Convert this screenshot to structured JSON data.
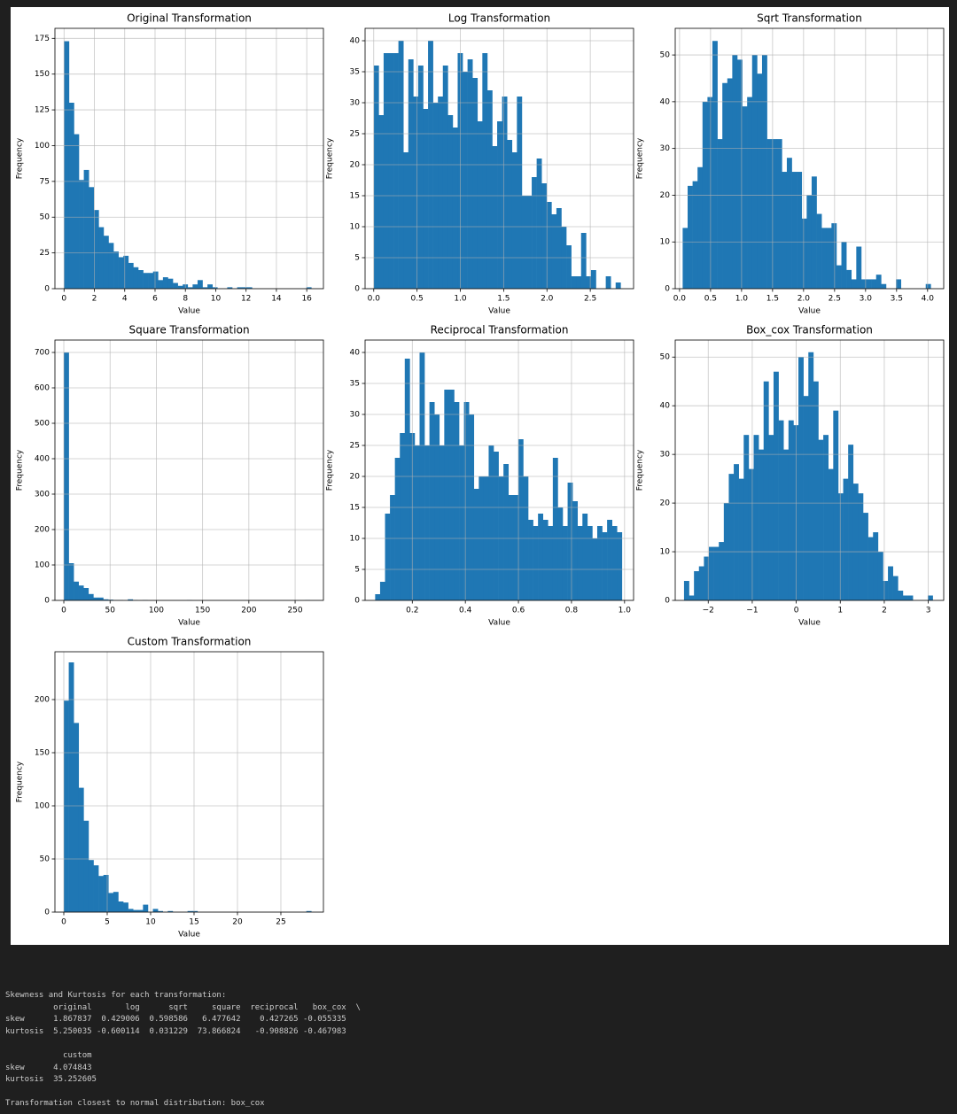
{
  "chart_data": [
    {
      "type": "histogram",
      "title": "Original Transformation",
      "xlabel": "Value",
      "ylabel": "Frequency",
      "color": "#1f77b4",
      "grid": true,
      "bins": [
        0,
        0.326,
        0.652,
        0.978,
        1.304,
        1.63,
        1.956,
        2.282,
        2.608,
        2.934,
        3.26,
        3.586,
        3.912,
        4.238,
        4.564,
        4.89,
        5.216,
        5.542,
        5.868,
        6.194,
        6.52,
        6.846,
        7.172,
        7.498,
        7.824,
        8.15,
        8.476,
        8.802,
        9.128,
        9.454,
        9.78,
        10.106,
        10.432,
        10.758,
        11.084,
        11.41,
        11.736,
        12.062,
        12.388,
        12.714,
        13.04,
        13.366,
        13.692,
        14.018,
        14.344,
        14.67,
        14.996,
        15.322,
        15.648,
        15.974,
        16.3
      ],
      "values": [
        173,
        130,
        108,
        76,
        83,
        71,
        55,
        43,
        37,
        32,
        26,
        22,
        23,
        18,
        15,
        13,
        11,
        11,
        12,
        6,
        8,
        7,
        4,
        2,
        3,
        1,
        3,
        6,
        1,
        3,
        1,
        0,
        0,
        1,
        0,
        1,
        1,
        1,
        0,
        0,
        0,
        0,
        0,
        0,
        0,
        0,
        0,
        0,
        0,
        1
      ],
      "xlim": [
        -0.6,
        17.1
      ],
      "xticks": [
        0,
        2,
        4,
        6,
        8,
        10,
        12,
        14,
        16
      ],
      "ylim": [
        0,
        182
      ],
      "yticks": [
        0,
        25,
        50,
        75,
        100,
        125,
        150,
        175
      ]
    },
    {
      "type": "histogram",
      "title": "Log Transformation",
      "xlabel": "Value",
      "ylabel": "Frequency",
      "color": "#1f77b4",
      "grid": true,
      "bins": [
        0,
        0.057,
        0.114,
        0.171,
        0.228,
        0.285,
        0.342,
        0.399,
        0.456,
        0.513,
        0.57,
        0.627,
        0.684,
        0.741,
        0.798,
        0.855,
        0.912,
        0.969,
        1.026,
        1.083,
        1.14,
        1.197,
        1.254,
        1.311,
        1.368,
        1.425,
        1.482,
        1.539,
        1.596,
        1.653,
        1.71,
        1.767,
        1.824,
        1.881,
        1.938,
        1.995,
        2.052,
        2.109,
        2.166,
        2.223,
        2.28,
        2.337,
        2.394,
        2.451,
        2.508,
        2.565,
        2.622,
        2.679,
        2.736,
        2.793,
        2.85
      ],
      "values": [
        36,
        28,
        38,
        38,
        38,
        40,
        22,
        37,
        31,
        36,
        29,
        40,
        30,
        31,
        36,
        28,
        26,
        38,
        35,
        37,
        34,
        27,
        38,
        32,
        23,
        27,
        31,
        24,
        22,
        31,
        15,
        15,
        18,
        21,
        17,
        14,
        12,
        13,
        10,
        7,
        2,
        2,
        9,
        2,
        3,
        0,
        0,
        2,
        0,
        1
      ],
      "xlim": [
        -0.1,
        3.0
      ],
      "xticks": [
        {
          "value": 0,
          "label": "0.0"
        },
        0.5,
        {
          "value": 1,
          "label": "1.0"
        },
        1.5,
        {
          "value": 2,
          "label": "2.0"
        },
        2.5
      ],
      "ylim": [
        0,
        42
      ],
      "yticks": [
        0,
        5,
        10,
        15,
        20,
        25,
        30,
        35,
        40
      ]
    },
    {
      "type": "histogram",
      "title": "Sqrt Transformation",
      "xlabel": "Value",
      "ylabel": "Frequency",
      "color": "#1f77b4",
      "grid": true,
      "bins": [
        0.05,
        0.13,
        0.21,
        0.29,
        0.37,
        0.45,
        0.53,
        0.61,
        0.69,
        0.77,
        0.85,
        0.93,
        1.01,
        1.09,
        1.17,
        1.25,
        1.33,
        1.41,
        1.49,
        1.57,
        1.65,
        1.73,
        1.81,
        1.89,
        1.97,
        2.05,
        2.13,
        2.21,
        2.29,
        2.37,
        2.45,
        2.53,
        2.61,
        2.69,
        2.77,
        2.85,
        2.93,
        3.01,
        3.09,
        3.17,
        3.25,
        3.33,
        3.41,
        3.49,
        3.57,
        3.65,
        3.73,
        3.81,
        3.89,
        3.97,
        4.05
      ],
      "values": [
        13,
        22,
        23,
        26,
        40,
        41,
        53,
        32,
        44,
        45,
        50,
        49,
        39,
        41,
        50,
        46,
        50,
        32,
        32,
        32,
        25,
        28,
        25,
        25,
        15,
        20,
        24,
        16,
        13,
        13,
        14,
        5,
        10,
        4,
        2,
        9,
        2,
        2,
        2,
        3,
        1,
        0,
        0,
        2,
        0,
        0,
        0,
        0,
        0,
        1
      ],
      "xlim": [
        -0.07,
        4.26
      ],
      "xticks": [
        {
          "value": 0,
          "label": "0.0"
        },
        0.5,
        {
          "value": 1,
          "label": "1.0"
        },
        1.5,
        {
          "value": 2,
          "label": "2.0"
        },
        2.5,
        {
          "value": 3,
          "label": "3.0"
        },
        3.5,
        {
          "value": 4,
          "label": "4.0"
        }
      ],
      "ylim": [
        0,
        55.7
      ],
      "yticks": [
        0,
        10,
        20,
        30,
        40,
        50
      ]
    },
    {
      "type": "histogram",
      "title": "Square Transformation",
      "xlabel": "Value",
      "ylabel": "Frequency",
      "color": "#1f77b4",
      "grid": true,
      "bins": [
        0,
        5.32,
        10.64,
        15.96,
        21.28,
        26.6,
        31.92,
        37.24,
        42.56,
        47.88,
        53.2,
        58.52,
        63.84,
        69.16,
        74.48,
        79.8,
        85.12,
        90.44,
        95.76,
        101.08,
        106.4,
        111.72,
        117.04,
        122.36,
        127.68,
        133,
        138.32,
        143.64,
        148.96,
        154.28,
        159.6,
        164.92,
        170.24,
        175.56,
        180.88,
        186.2,
        191.52,
        196.84,
        202.16,
        207.48,
        212.8,
        218.12,
        223.44,
        228.76,
        234.08,
        239.4,
        244.72,
        250.04,
        255.36,
        260.68,
        266
      ],
      "values": [
        700,
        105,
        53,
        42,
        35,
        18,
        8,
        8,
        3,
        2,
        1,
        1,
        0,
        3,
        1,
        0,
        1,
        0,
        0,
        0,
        0,
        0,
        0,
        0,
        0,
        1,
        0,
        0,
        0,
        0,
        0,
        0,
        0,
        0,
        0,
        0,
        0,
        0,
        0,
        0,
        0,
        0,
        0,
        0,
        0,
        0,
        0,
        0,
        0,
        1
      ],
      "xlim": [
        -9.6,
        280.6
      ],
      "xticks": [
        0,
        50,
        100,
        150,
        200,
        250
      ],
      "ylim": [
        0,
        735
      ],
      "yticks": [
        0,
        100,
        200,
        300,
        400,
        500,
        600,
        700
      ]
    },
    {
      "type": "histogram",
      "title": "Reciprocal Transformation",
      "xlabel": "Value",
      "ylabel": "Frequency",
      "color": "#1f77b4",
      "grid": true,
      "bins": [
        0.06,
        0.0786,
        0.0972,
        0.1158,
        0.1344,
        0.153,
        0.1716,
        0.1902,
        0.2088,
        0.2274,
        0.246,
        0.2646,
        0.2832,
        0.3018,
        0.3204,
        0.339,
        0.3576,
        0.3762,
        0.3948,
        0.4134,
        0.432,
        0.4506,
        0.4692,
        0.4878,
        0.5064,
        0.525,
        0.5436,
        0.5622,
        0.5808,
        0.5994,
        0.618,
        0.6366,
        0.6552,
        0.6738,
        0.6924,
        0.711,
        0.7296,
        0.7482,
        0.7668,
        0.7854,
        0.804,
        0.8226,
        0.8412,
        0.8598,
        0.8784,
        0.897,
        0.9156,
        0.9342,
        0.9528,
        0.9714,
        0.99
      ],
      "values": [
        1,
        3,
        14,
        17,
        23,
        27,
        39,
        27,
        25,
        40,
        25,
        32,
        30,
        25,
        34,
        34,
        32,
        25,
        32,
        30,
        18,
        20,
        20,
        25,
        24,
        20,
        22,
        17,
        17,
        26,
        20,
        13,
        12,
        14,
        13,
        12,
        23,
        15,
        12,
        19,
        16,
        12,
        14,
        12,
        10,
        12,
        11,
        13,
        12,
        11
      ],
      "xlim": [
        0.022,
        1.034
      ],
      "xticks": [
        0.2,
        0.4,
        0.6,
        0.8,
        {
          "value": 1,
          "label": "1.0"
        }
      ],
      "ylim": [
        0,
        42
      ],
      "yticks": [
        0,
        5,
        10,
        15,
        20,
        25,
        30,
        35,
        40
      ]
    },
    {
      "type": "histogram",
      "title": "Box_cox Transformation",
      "xlabel": "Value",
      "ylabel": "Frequency",
      "color": "#1f77b4",
      "grid": true,
      "bins": [
        -2.55,
        -2.437,
        -2.324,
        -2.211,
        -2.098,
        -1.985,
        -1.872,
        -1.759,
        -1.646,
        -1.533,
        -1.42,
        -1.307,
        -1.194,
        -1.081,
        -0.968,
        -0.855,
        -0.742,
        -0.629,
        -0.516,
        -0.403,
        -0.29,
        -0.177,
        -0.064,
        0.049,
        0.162,
        0.275,
        0.388,
        0.501,
        0.614,
        0.727,
        0.84,
        0.953,
        1.066,
        1.179,
        1.292,
        1.405,
        1.518,
        1.631,
        1.744,
        1.857,
        1.97,
        2.083,
        2.196,
        2.309,
        2.422,
        2.535,
        2.648,
        2.761,
        2.874,
        2.987,
        3.1
      ],
      "values": [
        4,
        1,
        6,
        7,
        9,
        11,
        11,
        12,
        20,
        26,
        28,
        25,
        34,
        27,
        34,
        31,
        45,
        34,
        47,
        37,
        31,
        37,
        36,
        50,
        42,
        51,
        45,
        33,
        34,
        27,
        39,
        22,
        25,
        32,
        24,
        22,
        18,
        13,
        14,
        10,
        4,
        7,
        5,
        2,
        1,
        1,
        0,
        0,
        0,
        1
      ],
      "xlim": [
        -2.75,
        3.35
      ],
      "xticks": [
        {
          "value": -2,
          "label": "−2"
        },
        {
          "value": -1,
          "label": "−1"
        },
        0,
        1,
        2,
        3
      ],
      "ylim": [
        0,
        53.5
      ],
      "yticks": [
        0,
        10,
        20,
        30,
        40,
        50
      ]
    },
    {
      "type": "histogram",
      "title": "Custom Transformation",
      "xlabel": "Value",
      "ylabel": "Frequency",
      "color": "#1f77b4",
      "grid": true,
      "bins": [
        0,
        0.57,
        1.14,
        1.71,
        2.28,
        2.85,
        3.42,
        3.99,
        4.56,
        5.13,
        5.7,
        6.27,
        6.84,
        7.41,
        7.98,
        8.55,
        9.12,
        9.69,
        10.26,
        10.83,
        11.4,
        11.97,
        12.54,
        13.11,
        13.68,
        14.25,
        14.82,
        15.39,
        15.96,
        16.53,
        17.1,
        17.67,
        18.24,
        18.81,
        19.38,
        19.95,
        20.52,
        21.09,
        21.66,
        22.23,
        22.8,
        23.37,
        23.94,
        24.51,
        25.08,
        25.65,
        26.22,
        26.79,
        27.36,
        27.93,
        28.5
      ],
      "values": [
        199,
        235,
        178,
        117,
        86,
        49,
        44,
        34,
        35,
        18,
        19,
        10,
        9,
        3,
        2,
        2,
        7,
        0,
        3,
        1,
        0,
        1,
        0,
        0,
        0,
        1,
        1,
        0,
        0,
        0,
        0,
        0,
        0,
        0,
        0,
        0,
        0,
        0,
        0,
        0,
        0,
        0,
        0,
        0,
        0,
        0,
        0,
        0,
        0,
        1
      ],
      "xlim": [
        -1.02,
        29.9
      ],
      "xticks": [
        0,
        5,
        10,
        15,
        20,
        25
      ],
      "ylim": [
        0,
        245
      ],
      "yticks": [
        0,
        50,
        100,
        150,
        200
      ]
    }
  ],
  "output": {
    "header": "Skewness and Kurtosis for each transformation:",
    "table1": [
      "          original       log      sqrt     square  reciprocal   box_cox  \\",
      "skew      1.867837  0.429006  0.598586   6.477642    0.427265 -0.055335",
      "kurtosis  5.250035 -0.600114  0.031229  73.866824   -0.908826 -0.467983"
    ],
    "table2": [
      "            custom",
      "skew      4.074843",
      "kurtosis  35.252605"
    ],
    "result": "Transformation closest to normal distribution: box_cox"
  }
}
